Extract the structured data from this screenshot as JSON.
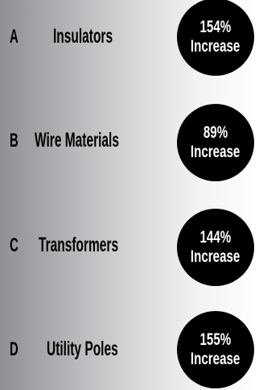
{
  "items": [
    {
      "letter": "A",
      "label": "Insulators",
      "percent": "154%",
      "change": "Increase"
    },
    {
      "letter": "B",
      "label": "Wire Materials",
      "percent": "89%",
      "change": "Increase"
    },
    {
      "letter": "C",
      "label": "Transformers",
      "percent": "144%",
      "change": "Increase"
    },
    {
      "letter": "D",
      "label": "Utility Poles",
      "percent": "155%",
      "change": "Increase"
    }
  ]
}
